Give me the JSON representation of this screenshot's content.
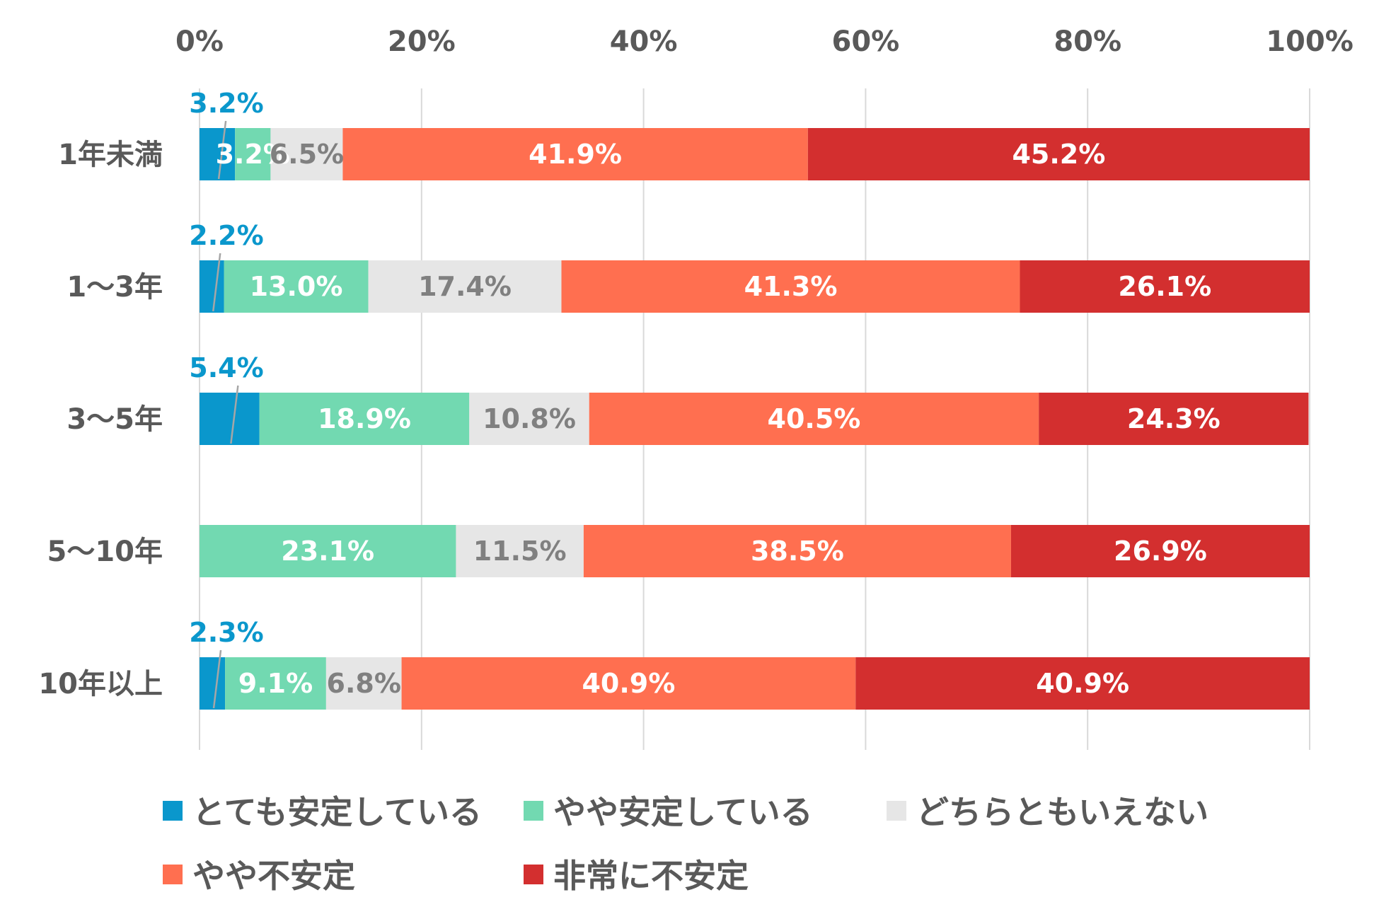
{
  "chart_data": {
    "type": "bar",
    "orientation": "horizontal",
    "stacked": "percent",
    "categories": [
      "1年未満",
      "1～3年",
      "3～5年",
      "5～10年",
      "10年以上"
    ],
    "series": [
      {
        "name": "とても安定している",
        "color": "#0A97CC",
        "values": [
          3.2,
          2.2,
          5.4,
          0,
          2.3
        ],
        "labels": [
          "3.2%",
          "2.2%",
          "5.4%",
          "",
          "2.3%"
        ],
        "label_color": "#0A97CC",
        "label_position": "above"
      },
      {
        "name": "やや安定している",
        "color": "#72D9B1",
        "values": [
          3.2,
          13.0,
          18.9,
          23.1,
          9.1
        ],
        "labels": [
          "3.2%",
          "13.0%",
          "18.9%",
          "23.1%",
          "9.1%"
        ],
        "label_color": "#FFFFFF"
      },
      {
        "name": "どちらともいえない",
        "color": "#E6E6E6",
        "values": [
          6.5,
          17.4,
          10.8,
          11.5,
          6.8
        ],
        "labels": [
          "6.5%",
          "17.4%",
          "10.8%",
          "11.5%",
          "6.8%"
        ],
        "label_color": "#808080"
      },
      {
        "name": "やや不安定",
        "color": "#FF6F50",
        "values": [
          41.9,
          41.3,
          40.5,
          38.5,
          40.9
        ],
        "labels": [
          "41.9%",
          "41.3%",
          "40.5%",
          "38.5%",
          "40.9%"
        ],
        "label_color": "#FFFFFF"
      },
      {
        "name": "非常に不安定",
        "color": "#D32F2F",
        "values": [
          45.2,
          26.1,
          24.3,
          26.9,
          40.9
        ],
        "labels": [
          "45.2%",
          "26.1%",
          "24.3%",
          "26.9%",
          "40.9%"
        ],
        "label_color": "#FFFFFF"
      }
    ],
    "x_ticks": [
      "0%",
      "20%",
      "40%",
      "60%",
      "80%",
      "100%"
    ],
    "xlim": [
      0,
      100
    ],
    "x_axis_position": "top",
    "grid": true,
    "legend_position": "bottom",
    "title": "",
    "xlabel": "",
    "ylabel": ""
  }
}
